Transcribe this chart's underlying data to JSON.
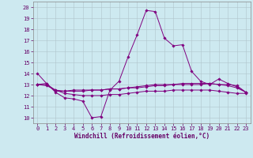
{
  "xlabel": "Windchill (Refroidissement éolien,°C)",
  "xlim": [
    -0.5,
    23.5
  ],
  "ylim": [
    9.5,
    20.5
  ],
  "yticks": [
    10,
    11,
    12,
    13,
    14,
    15,
    16,
    17,
    18,
    19,
    20
  ],
  "xticks": [
    0,
    1,
    2,
    3,
    4,
    5,
    6,
    7,
    8,
    9,
    10,
    11,
    12,
    13,
    14,
    15,
    16,
    17,
    18,
    19,
    20,
    21,
    22,
    23
  ],
  "bg_color": "#cde9f0",
  "line_color": "#800080",
  "grid_color": "#b0c4cc",
  "lines": [
    {
      "x": [
        0,
        1,
        2,
        3,
        4,
        5,
        6,
        7,
        8,
        9,
        10,
        11,
        12,
        13,
        14,
        15,
        16,
        17,
        18,
        19,
        20,
        21,
        22,
        23
      ],
      "y": [
        14.0,
        13.1,
        12.3,
        11.8,
        11.7,
        11.5,
        10.0,
        10.1,
        12.5,
        13.3,
        15.5,
        17.5,
        19.7,
        19.6,
        17.2,
        16.5,
        16.6,
        14.2,
        13.3,
        13.0,
        13.5,
        13.1,
        12.8,
        12.3
      ]
    },
    {
      "x": [
        0,
        1,
        2,
        3,
        4,
        5,
        6,
        7,
        8,
        9,
        10,
        11,
        12,
        13,
        14,
        15,
        16,
        17,
        18,
        19,
        20,
        21,
        22,
        23
      ],
      "y": [
        13.0,
        13.1,
        12.4,
        12.4,
        12.5,
        12.5,
        12.5,
        12.5,
        12.6,
        12.6,
        12.7,
        12.8,
        12.9,
        13.0,
        13.0,
        13.0,
        13.1,
        13.1,
        13.1,
        13.1,
        13.0,
        13.0,
        12.9,
        12.3
      ]
    },
    {
      "x": [
        0,
        1,
        2,
        3,
        4,
        5,
        6,
        7,
        8,
        9,
        10,
        11,
        12,
        13,
        14,
        15,
        16,
        17,
        18,
        19,
        20,
        21,
        22,
        23
      ],
      "y": [
        13.0,
        13.0,
        12.5,
        12.4,
        12.4,
        12.4,
        12.5,
        12.5,
        12.6,
        12.6,
        12.7,
        12.7,
        12.8,
        12.9,
        12.9,
        13.0,
        13.0,
        13.0,
        13.0,
        13.1,
        13.0,
        12.9,
        12.7,
        12.3
      ]
    },
    {
      "x": [
        0,
        1,
        2,
        3,
        4,
        5,
        6,
        7,
        8,
        9,
        10,
        11,
        12,
        13,
        14,
        15,
        16,
        17,
        18,
        19,
        20,
        21,
        22,
        23
      ],
      "y": [
        13.0,
        12.9,
        12.5,
        12.2,
        12.1,
        12.0,
        12.0,
        12.0,
        12.1,
        12.1,
        12.2,
        12.3,
        12.4,
        12.4,
        12.4,
        12.5,
        12.5,
        12.5,
        12.5,
        12.5,
        12.4,
        12.3,
        12.2,
        12.2
      ]
    }
  ]
}
